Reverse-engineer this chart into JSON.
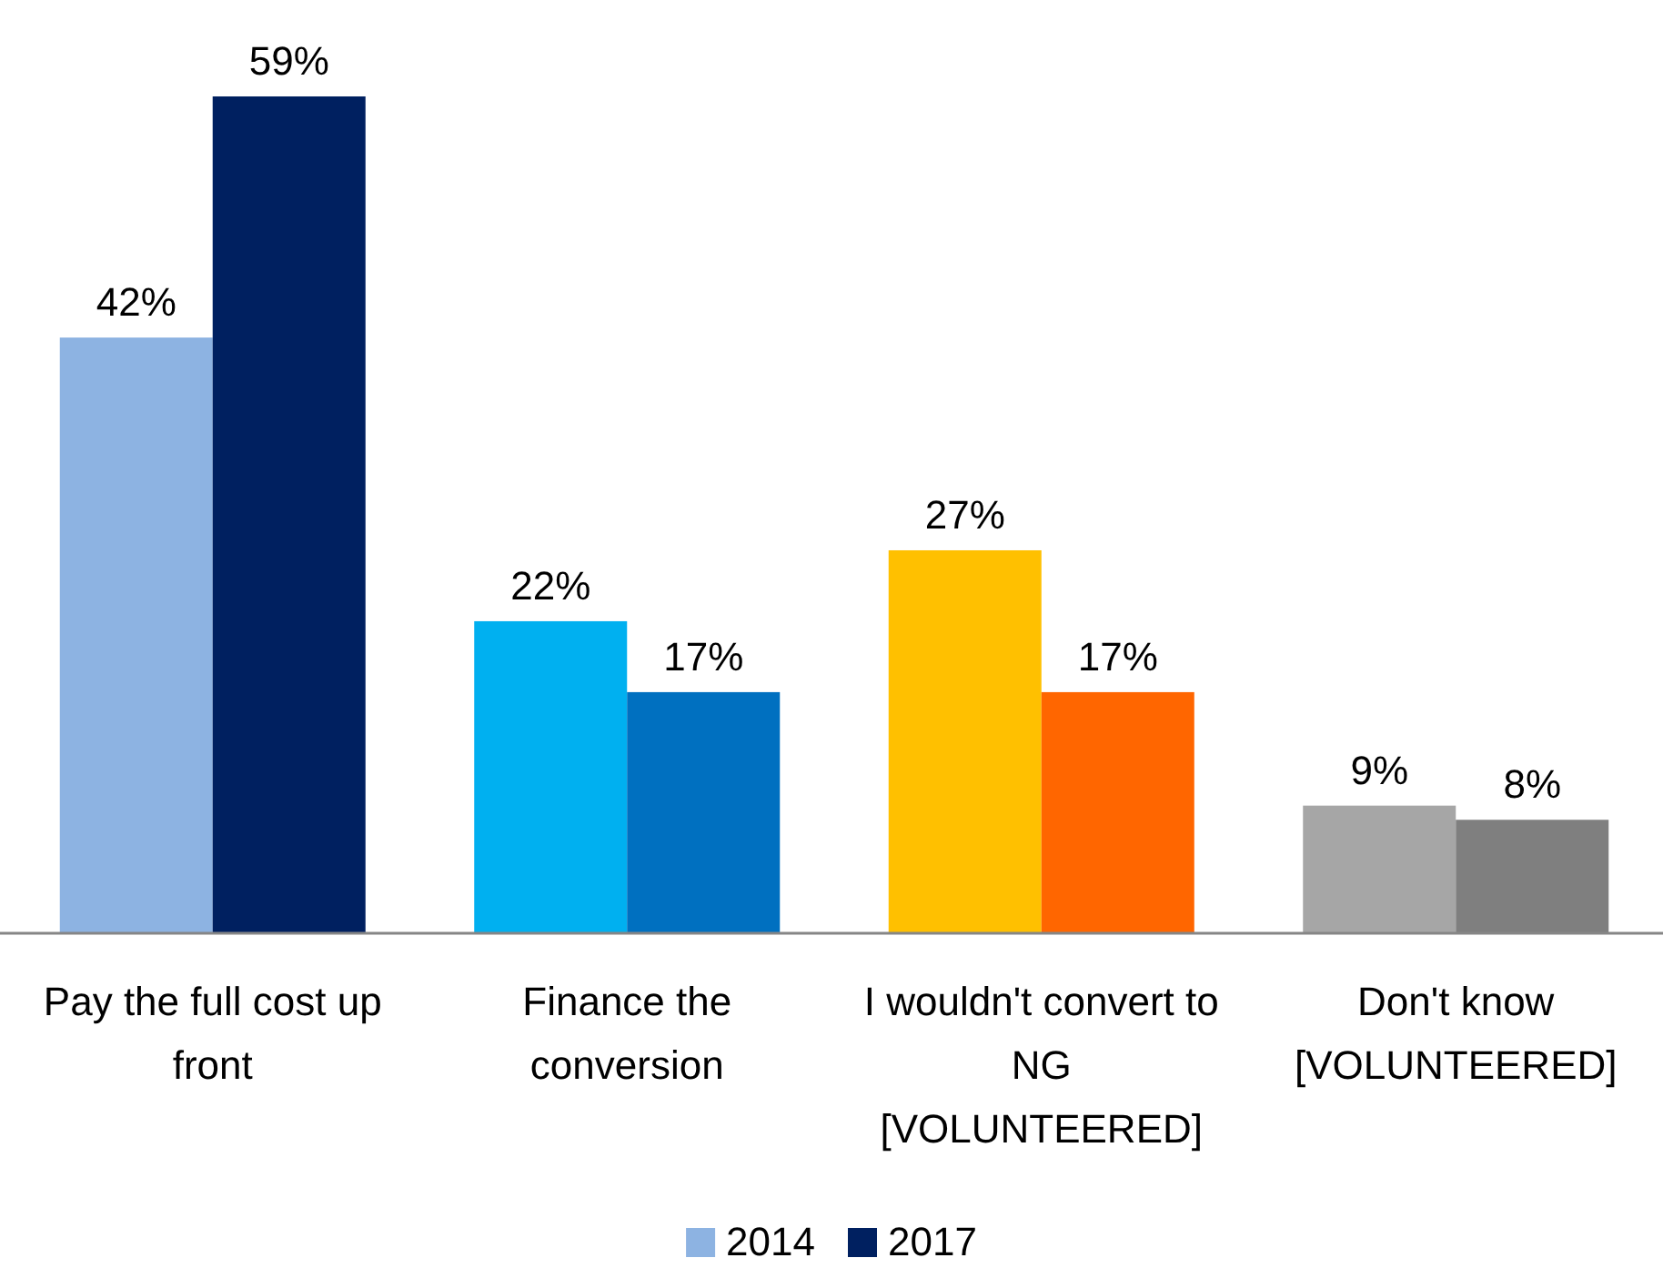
{
  "chart_data": {
    "type": "bar",
    "categories": [
      "Pay the full cost up front",
      "Finance the conversion",
      "I wouldn't convert to NG [VOLUNTEERED]",
      "Don't know [VOLUNTEERED]"
    ],
    "series": [
      {
        "name": "2014",
        "color": "#8db3e2",
        "colors": [
          "#8db3e2",
          "#00b0f0",
          "#ffc000",
          "#a6a6a6"
        ],
        "values": [
          42,
          22,
          27,
          9
        ],
        "value_labels": [
          "42%",
          "22%",
          "27%",
          "9%"
        ]
      },
      {
        "name": "2017",
        "color": "#002060",
        "colors": [
          "#002060",
          "#0070c0",
          "#ff6600",
          "#7f7f7f"
        ],
        "values": [
          59,
          17,
          17,
          8
        ],
        "value_labels": [
          "59%",
          "17%",
          "17%",
          "8%"
        ]
      }
    ],
    "legend": "bottom",
    "grid": false
  }
}
